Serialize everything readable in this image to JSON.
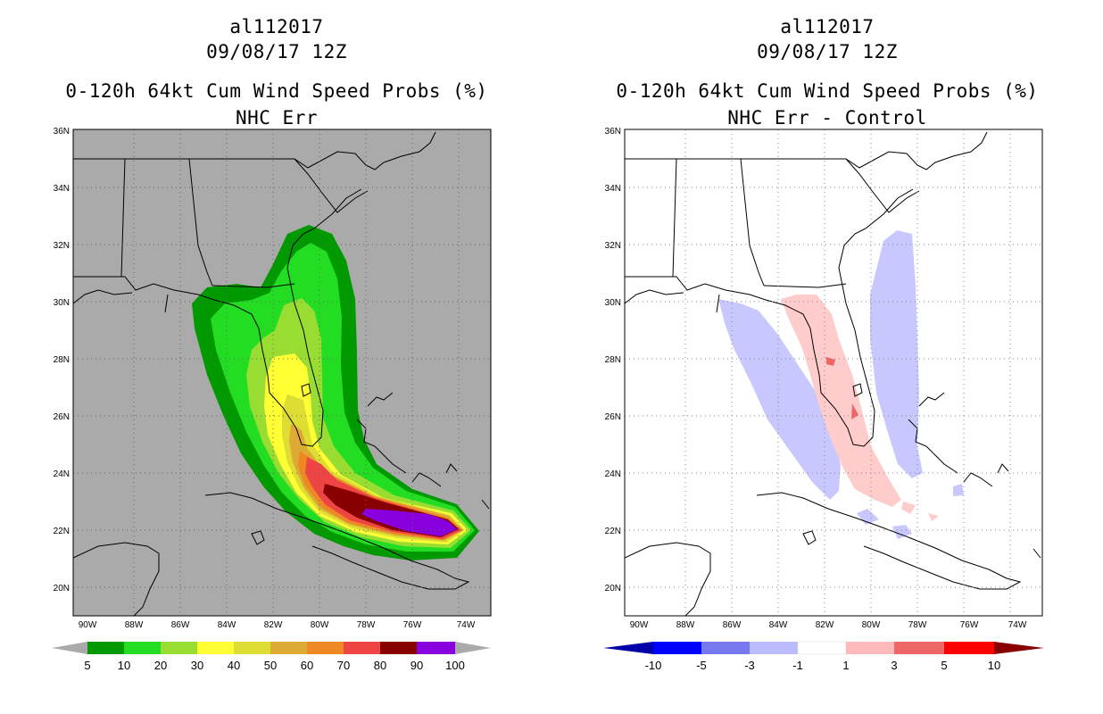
{
  "left": {
    "storm_id": "al112017",
    "datetime": "09/08/17 12Z",
    "product": "0-120h 64kt Cum Wind Speed Probs (%)",
    "subtitle": "NHC Err",
    "lat_labels": [
      "36N",
      "34N",
      "32N",
      "30N",
      "28N",
      "26N",
      "24N",
      "22N",
      "20N"
    ],
    "lon_labels": [
      "90W",
      "88W",
      "86W",
      "84W",
      "82W",
      "80W",
      "78W",
      "76W",
      "74W"
    ],
    "legend": {
      "labels": [
        "5",
        "10",
        "20",
        "30",
        "40",
        "50",
        "60",
        "70",
        "80",
        "90",
        "100"
      ],
      "colors": [
        "#009900",
        "#22dd22",
        "#99dd33",
        "#ffff33",
        "#dddd33",
        "#ddaa33",
        "#ee8822",
        "#ee4444",
        "#880000",
        "#8800dd"
      ],
      "end_color": "#aaaaaa"
    }
  },
  "right": {
    "storm_id": "al112017",
    "datetime": "09/08/17 12Z",
    "product": "0-120h 64kt Cum Wind Speed Probs (%)",
    "subtitle": "NHC Err - Control",
    "lat_labels": [
      "36N",
      "34N",
      "32N",
      "30N",
      "28N",
      "26N",
      "24N",
      "22N",
      "20N"
    ],
    "lon_labels": [
      "90W",
      "88W",
      "86W",
      "84W",
      "82W",
      "80W",
      "78W",
      "76W",
      "74W"
    ],
    "legend": {
      "labels": [
        "-10",
        "-5",
        "-3",
        "-1",
        "1",
        "3",
        "5",
        "10"
      ],
      "colors": [
        "#0000aa",
        "#0000ff",
        "#7777ee",
        "#bbbbff",
        "#ffffff",
        "#ffbbbb",
        "#ee6666",
        "#ff0000",
        "#880000"
      ]
    }
  },
  "map_colors": {
    "background_left": "#aaaaaa",
    "background_right": "#ffffff"
  }
}
